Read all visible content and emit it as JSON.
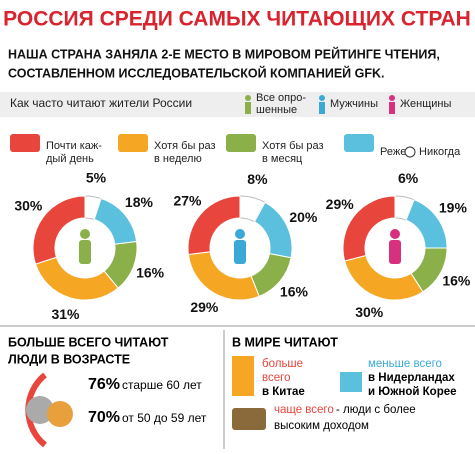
{
  "header": {
    "title": "РОССИЯ СРЕДИ САМЫХ ЧИТАЮЩИХ СТРАН",
    "subtitle": [
      "НАША СТРАНА ЗАНЯЛА 2-Е МЕСТО В МИРОВОМ РЕЙТИНГЕ ЧТЕНИЯ,",
      "СОСТАВЛЕННОМ ИССЛЕДОВАТЕЛЬСКОЙ КОМПАНИЕЙ GFK."
    ]
  },
  "band": {
    "label": "Как часто читают жители России",
    "groups": [
      [
        "Все опро-",
        "шенные"
      ],
      [
        "Мужчины"
      ],
      [
        "Женщины"
      ]
    ],
    "group_colors": [
      "#8bb04a",
      "#3aa9d6",
      "#d6307e"
    ]
  },
  "legend": {
    "items": [
      [
        "Почти каж-",
        "дый день"
      ],
      [
        "Хотя бы раз",
        "в неделю"
      ],
      [
        "Хотя бы раз",
        "в месяц"
      ],
      [
        "Реже"
      ],
      [
        "Никогда"
      ]
    ],
    "colors": [
      "#e8453c",
      "#f5a623",
      "#8bb04a",
      "#5bc0de",
      "#ffffff"
    ]
  },
  "chart_data": [
    {
      "type": "donut",
      "values": [
        5,
        18,
        16,
        31,
        30
      ],
      "value_labels": [
        "5%",
        "18%",
        "16%",
        "31%",
        "30%"
      ],
      "colors": [
        "#ffffff",
        "#5bc0de",
        "#8bb04a",
        "#f5a623",
        "#e8453c"
      ]
    },
    {
      "type": "donut",
      "values": [
        8,
        20,
        16,
        29,
        27
      ],
      "value_labels": [
        "8%",
        "20%",
        "16%",
        "29%",
        "27%"
      ],
      "colors": [
        "#ffffff",
        "#5bc0de",
        "#8bb04a",
        "#f5a623",
        "#e8453c"
      ]
    },
    {
      "type": "donut",
      "values": [
        6,
        19,
        16,
        30,
        29
      ],
      "value_labels": [
        "6%",
        "19%",
        "16%",
        "30%",
        "29%"
      ],
      "colors": [
        "#ffffff",
        "#5bc0de",
        "#8bb04a",
        "#f5a623",
        "#e8453c"
      ]
    }
  ],
  "age": {
    "title": [
      "БОЛЬШЕ ВСЕГО ЧИТАЮТ",
      "ЛЮДИ В ВОЗРАСТЕ"
    ],
    "rows": [
      [
        "76%",
        "старше 60 лет"
      ],
      [
        "70%",
        "от 50 до 59 лет"
      ]
    ]
  },
  "world": {
    "title": "В МИРЕ ЧИТАЮТ",
    "most": [
      "больше",
      "всего",
      "в Китае"
    ],
    "least": [
      "меньше всего",
      "в Нидерландах",
      "и Южной Корее"
    ],
    "often": [
      "чаще всего",
      "- люди с более",
      "высоким доходом"
    ]
  }
}
